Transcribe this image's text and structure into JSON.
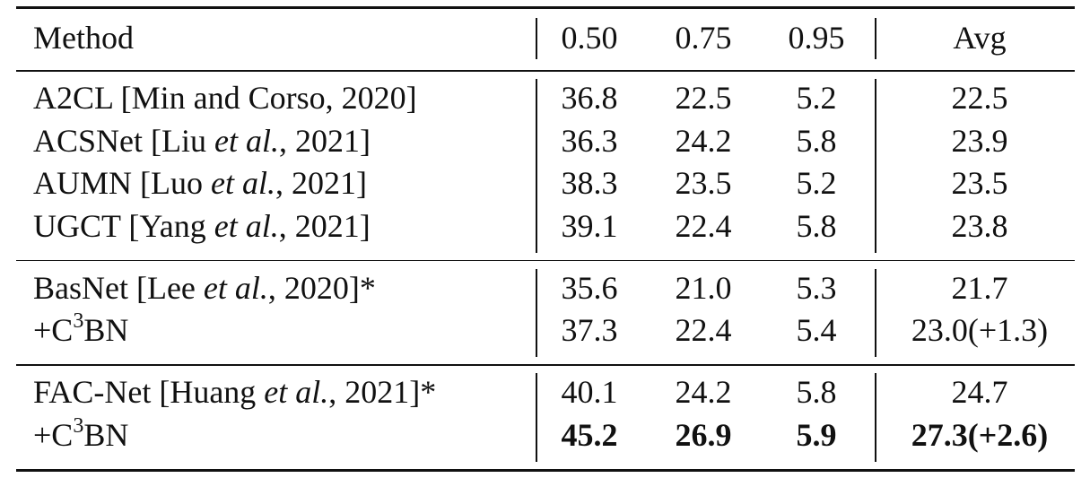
{
  "header": [
    "Method",
    "0.50",
    "0.75",
    "0.95",
    "Avg"
  ],
  "groups": [
    {
      "rows": [
        {
          "method": [
            {
              "text": "A2CL [Min and Corso, 2020]"
            }
          ],
          "cells": [
            "36.8",
            "22.5",
            "5.2",
            "22.5"
          ]
        },
        {
          "method": [
            {
              "text": "ACSNet [Liu "
            },
            {
              "text": "et al.",
              "style": "italic"
            },
            {
              "text": ", 2021]"
            }
          ],
          "cells": [
            "36.3",
            "24.2",
            "5.8",
            "23.9"
          ]
        },
        {
          "method": [
            {
              "text": "AUMN [Luo "
            },
            {
              "text": "et al.",
              "style": "italic"
            },
            {
              "text": ", 2021]"
            }
          ],
          "cells": [
            "38.3",
            "23.5",
            "5.2",
            "23.5"
          ]
        },
        {
          "method": [
            {
              "text": "UGCT [Yang "
            },
            {
              "text": "et al.",
              "style": "italic"
            },
            {
              "text": ", 2021]"
            }
          ],
          "cells": [
            "39.1",
            "22.4",
            "5.8",
            "23.8"
          ]
        }
      ]
    },
    {
      "rows": [
        {
          "method": [
            {
              "text": "BasNet [Lee "
            },
            {
              "text": "et al.",
              "style": "italic"
            },
            {
              "text": ", 2020]*"
            }
          ],
          "cells": [
            "35.6",
            "21.0",
            "5.3",
            "21.7"
          ]
        },
        {
          "method": [
            {
              "text": "+C"
            },
            {
              "text": "3",
              "style": "sup"
            },
            {
              "text": "BN"
            }
          ],
          "cells": [
            "37.3",
            "22.4",
            "5.4",
            "23.0(+1.3)"
          ]
        }
      ]
    },
    {
      "rows": [
        {
          "method": [
            {
              "text": "FAC-Net [Huang "
            },
            {
              "text": "et al.",
              "style": "italic"
            },
            {
              "text": ", 2021]*"
            }
          ],
          "cells": [
            "40.1",
            "24.2",
            "5.8",
            "24.7"
          ]
        },
        {
          "method": [
            {
              "text": "+C"
            },
            {
              "text": "3",
              "style": "sup"
            },
            {
              "text": "BN"
            }
          ],
          "cells": [
            "45.2",
            "26.9",
            "5.9",
            "27.3(+2.6)"
          ],
          "bold": true
        }
      ]
    }
  ]
}
